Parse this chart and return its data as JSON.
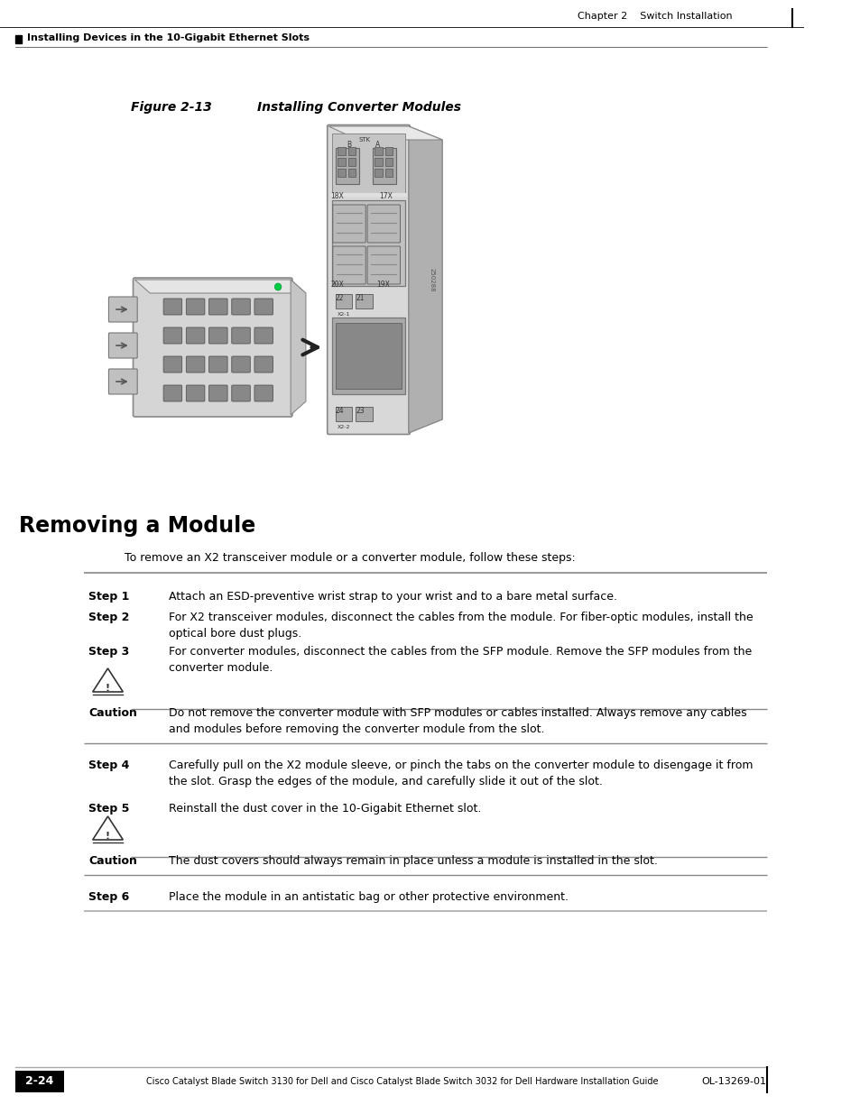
{
  "page_bg": "#ffffff",
  "header_chapter": "Chapter 2    Switch Installation",
  "header_section": "Installing Devices in the 10-Gigabit Ethernet Slots",
  "figure_title_left": "Figure 2-13",
  "figure_title_right": "Installing Converter Modules",
  "section_title": "Removing a Module",
  "intro_text": "To remove an X2 transceiver module or a converter module, follow these steps:",
  "steps": [
    {
      "label": "Step 1",
      "text": "Attach an ESD-preventive wrist strap to your wrist and to a bare metal surface."
    },
    {
      "label": "Step 2",
      "text": "For X2 transceiver modules, disconnect the cables from the module. For fiber-optic modules, install the\noptical bore dust plugs."
    },
    {
      "label": "Step 3",
      "text": "For converter modules, disconnect the cables from the SFP module. Remove the SFP modules from the\nconverter module."
    },
    {
      "label": "Step 4",
      "text": "Carefully pull on the X2 module sleeve, or pinch the tabs on the converter module to disengage it from\nthe slot. Grasp the edges of the module, and carefully slide it out of the slot."
    },
    {
      "label": "Step 5",
      "text": "Reinstall the dust cover in the 10-Gigabit Ethernet slot."
    },
    {
      "label": "Step 6",
      "text": "Place the module in an antistatic bag or other protective environment."
    }
  ],
  "cautions": [
    {
      "text": "Do not remove the converter module with SFP modules or cables installed. Always remove any cables\nand modules before removing the converter module from the slot."
    },
    {
      "text": "The dust covers should always remain in place unless a module is installed in the slot."
    }
  ],
  "footer_left": "Cisco Catalyst Blade Switch 3130 for Dell and Cisco Catalyst Blade Switch 3032 for Dell Hardware Installation Guide",
  "footer_right": "OL-13269-01",
  "footer_page": "2-24"
}
